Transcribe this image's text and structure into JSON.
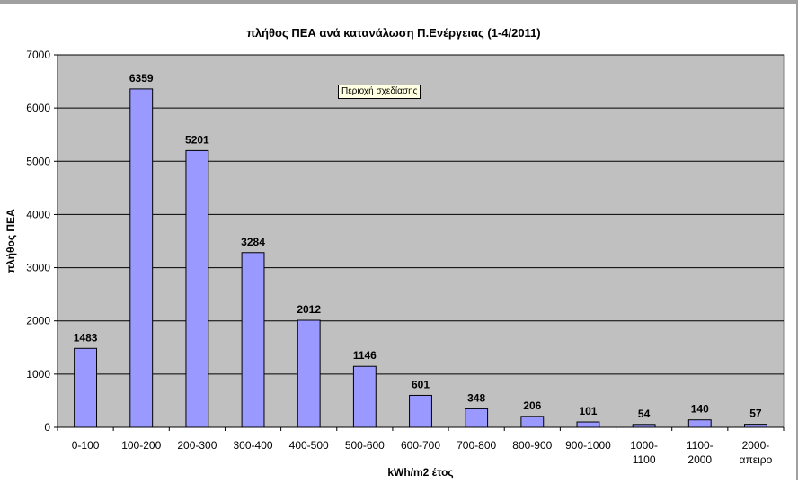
{
  "chart_data": {
    "type": "bar",
    "title": "πλήθος ΠΕΑ ανά κατανάλωση Π.Ενέργειας (1-4/2011)",
    "xlabel": "kWh/m2  έτος",
    "ylabel": "πλήθος ΠΕΑ",
    "ylim": [
      0,
      7000
    ],
    "yticks": [
      "0",
      "1000",
      "2000",
      "3000",
      "4000",
      "5000",
      "6000",
      "7000"
    ],
    "grid": true,
    "categories": [
      [
        "0-100"
      ],
      [
        "100-200"
      ],
      [
        "200-300"
      ],
      [
        "300-400"
      ],
      [
        "400-500"
      ],
      [
        "500-600"
      ],
      [
        "600-700"
      ],
      [
        "700-800"
      ],
      [
        "800-900"
      ],
      [
        "900-1000"
      ],
      [
        "1000-",
        "1100"
      ],
      [
        "1100-",
        "2000"
      ],
      [
        "2000-",
        "απειρο"
      ]
    ],
    "values": [
      1483,
      6359,
      5201,
      3284,
      2012,
      1146,
      601,
      348,
      206,
      101,
      54,
      140,
      57
    ],
    "colors": {
      "bar": "#9999ff",
      "plot_bg": "#c0c0c0",
      "gridline": "#000000"
    }
  },
  "tooltip": "Περιοχή σχεδίασης"
}
